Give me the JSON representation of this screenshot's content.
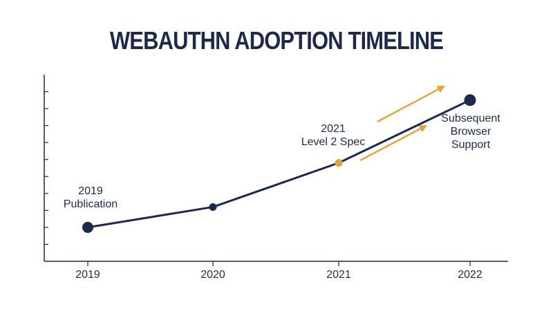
{
  "chart_data": {
    "type": "line",
    "title": "WEBAUTHN ADOPTION TIMELINE",
    "xlabel": "",
    "ylabel": "",
    "x": [
      "2019",
      "2020",
      "2021",
      "2022"
    ],
    "series": [
      {
        "values": [
          1.0,
          2.2,
          4.8,
          8.5
        ]
      }
    ],
    "ylim": [
      -1,
      10
    ],
    "y_tick_labels_shown": false,
    "y_ticks": [
      0,
      1,
      2,
      3,
      4,
      5,
      6,
      7,
      8,
      9
    ],
    "grid": false,
    "annotations": [
      {
        "x": "2019",
        "lines": [
          "2019",
          "Publication"
        ]
      },
      {
        "x": "2021",
        "lines": [
          "2021",
          "Level 2 Spec"
        ],
        "highlight": true
      },
      {
        "x": "2022",
        "lines": [
          "Subsequent",
          "Browser",
          "Support"
        ]
      }
    ],
    "trend_arrows": 2,
    "colors": {
      "line": "#1b2a4a",
      "highlight": "#e5a43a",
      "axis": "#1b2a4a"
    }
  }
}
